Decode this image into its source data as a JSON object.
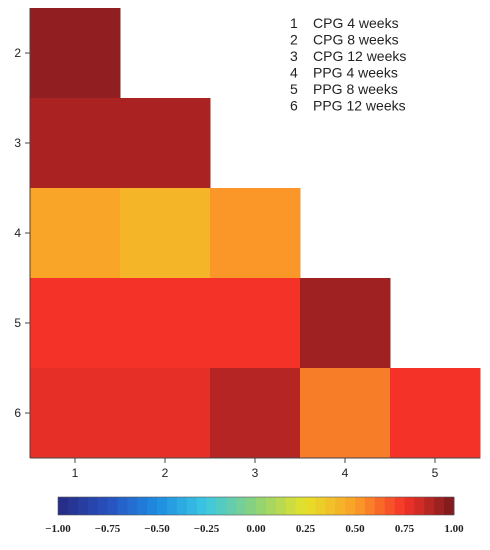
{
  "chart_data": {
    "type": "heatmap",
    "title": "",
    "xlabel": "",
    "ylabel": "",
    "x_categories": [
      "1",
      "2",
      "3",
      "4",
      "5"
    ],
    "y_categories": [
      "2",
      "3",
      "4",
      "5",
      "6"
    ],
    "cells": [
      {
        "row": "2",
        "col": "1",
        "value": 0.95
      },
      {
        "row": "3",
        "col": "1",
        "value": 0.9
      },
      {
        "row": "3",
        "col": "2",
        "value": 0.9
      },
      {
        "row": "4",
        "col": "1",
        "value": 0.48
      },
      {
        "row": "4",
        "col": "2",
        "value": 0.42
      },
      {
        "row": "4",
        "col": "3",
        "value": 0.52
      },
      {
        "row": "5",
        "col": "1",
        "value": 0.75
      },
      {
        "row": "5",
        "col": "2",
        "value": 0.75
      },
      {
        "row": "5",
        "col": "3",
        "value": 0.75
      },
      {
        "row": "5",
        "col": "4",
        "value": 0.92
      },
      {
        "row": "6",
        "col": "1",
        "value": 0.78
      },
      {
        "row": "6",
        "col": "2",
        "value": 0.78
      },
      {
        "row": "6",
        "col": "3",
        "value": 0.88
      },
      {
        "row": "6",
        "col": "4",
        "value": 0.58
      },
      {
        "row": "6",
        "col": "5",
        "value": 0.75
      }
    ],
    "legend": [
      {
        "num": "1",
        "label": "CPG 4 weeks"
      },
      {
        "num": "2",
        "label": "CPG 8 weeks"
      },
      {
        "num": "3",
        "label": "CPG 12 weeks"
      },
      {
        "num": "4",
        "label": "PPG 4 weeks"
      },
      {
        "num": "5",
        "label": "PPG 8 weeks"
      },
      {
        "num": "6",
        "label": "PPG 12 weeks"
      }
    ],
    "legend_position": "top-right",
    "colorbar": {
      "range": [
        -1.0,
        1.0
      ],
      "ticks": [
        "−1.00",
        "−0.75",
        "−0.50",
        "−0.25",
        "0.00",
        "0.25",
        "0.50",
        "0.75",
        "1.00"
      ],
      "orientation": "horizontal",
      "position": "bottom"
    },
    "grid": false
  }
}
